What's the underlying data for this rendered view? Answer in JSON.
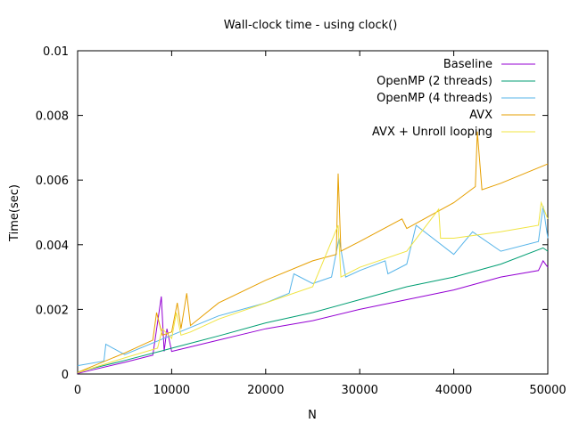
{
  "chart_data": {
    "type": "line",
    "title": "Wall-clock time - using clock()",
    "xlabel": "N",
    "ylabel": "Time(sec)",
    "xlim": [
      0,
      50000
    ],
    "ylim": [
      0,
      0.01
    ],
    "xticks": [
      {
        "value": 0,
        "label": "0"
      },
      {
        "value": 10000,
        "label": "10000"
      },
      {
        "value": 20000,
        "label": "20000"
      },
      {
        "value": 30000,
        "label": "30000"
      },
      {
        "value": 40000,
        "label": "40000"
      },
      {
        "value": 50000,
        "label": "50000"
      }
    ],
    "yticks": [
      {
        "value": 0,
        "label": "0"
      },
      {
        "value": 0.002,
        "label": "0.002"
      },
      {
        "value": 0.004,
        "label": "0.004"
      },
      {
        "value": 0.006,
        "label": "0.006"
      },
      {
        "value": 0.008,
        "label": "0.008"
      },
      {
        "value": 0.01,
        "label": "0.01"
      }
    ],
    "grid": false,
    "legend_position": "top-right",
    "series": [
      {
        "name": "Baseline",
        "color": "#9400d3",
        "x": [
          0,
          5000,
          8000,
          8900,
          9200,
          9500,
          10000,
          15000,
          20000,
          25000,
          30000,
          35000,
          40000,
          45000,
          49000,
          49500,
          50000
        ],
        "y": [
          2e-05,
          0.00036,
          0.00058,
          0.0024,
          0.0007,
          0.0014,
          0.0007,
          0.00105,
          0.0014,
          0.00165,
          0.002,
          0.0023,
          0.0026,
          0.003,
          0.0032,
          0.0035,
          0.0033
        ]
      },
      {
        "name": "OpenMP (2 threads)",
        "color": "#009e73",
        "x": [
          0,
          5000,
          9000,
          10000,
          15000,
          20000,
          25000,
          30000,
          35000,
          40000,
          45000,
          49500,
          50000
        ],
        "y": [
          6e-05,
          0.00042,
          0.00072,
          0.0008,
          0.00118,
          0.00158,
          0.0019,
          0.0023,
          0.0027,
          0.003,
          0.0034,
          0.0039,
          0.0038
        ]
      },
      {
        "name": "OpenMP (4 threads)",
        "color": "#56b4e9",
        "x": [
          0,
          2800,
          3000,
          5000,
          10000,
          15000,
          20000,
          22500,
          23000,
          25000,
          27000,
          27800,
          28500,
          30000,
          32700,
          33000,
          35000,
          36000,
          40000,
          42000,
          45000,
          49000,
          49500,
          50000
        ],
        "y": [
          0.00026,
          0.0004,
          0.00092,
          0.0006,
          0.0012,
          0.0018,
          0.0022,
          0.0025,
          0.0031,
          0.0028,
          0.003,
          0.0042,
          0.003,
          0.0032,
          0.0035,
          0.0031,
          0.0034,
          0.0046,
          0.0037,
          0.0044,
          0.0038,
          0.0041,
          0.0052,
          0.0042
        ]
      },
      {
        "name": "AVX",
        "color": "#e69f00",
        "x": [
          0,
          5000,
          8000,
          8400,
          9000,
          10000,
          10600,
          11000,
          11600,
          12000,
          15000,
          20000,
          25000,
          27500,
          27700,
          28000,
          30000,
          34500,
          35000,
          40000,
          42300,
          42500,
          43000,
          45000,
          50000
        ],
        "y": [
          5e-05,
          0.00065,
          0.00105,
          0.0019,
          0.0012,
          0.0013,
          0.0022,
          0.0014,
          0.0025,
          0.0015,
          0.0022,
          0.0029,
          0.0035,
          0.0037,
          0.0062,
          0.0038,
          0.0041,
          0.0048,
          0.0045,
          0.0053,
          0.0058,
          0.0075,
          0.0057,
          0.0059,
          0.0065
        ]
      },
      {
        "name": "AVX + Unroll looping",
        "color": "#f0e442",
        "x": [
          0,
          5000,
          8500,
          9000,
          10000,
          10500,
          11000,
          12000,
          15000,
          20000,
          25000,
          27700,
          28000,
          30000,
          35000,
          38400,
          38600,
          40000,
          45000,
          49000,
          49300,
          50000
        ],
        "y": [
          4e-05,
          0.0005,
          0.0008,
          0.0014,
          0.0011,
          0.0019,
          0.0012,
          0.0013,
          0.0017,
          0.0022,
          0.0027,
          0.0046,
          0.003,
          0.0033,
          0.0038,
          0.0051,
          0.0042,
          0.0042,
          0.0044,
          0.0046,
          0.0053,
          0.0048
        ]
      }
    ]
  }
}
